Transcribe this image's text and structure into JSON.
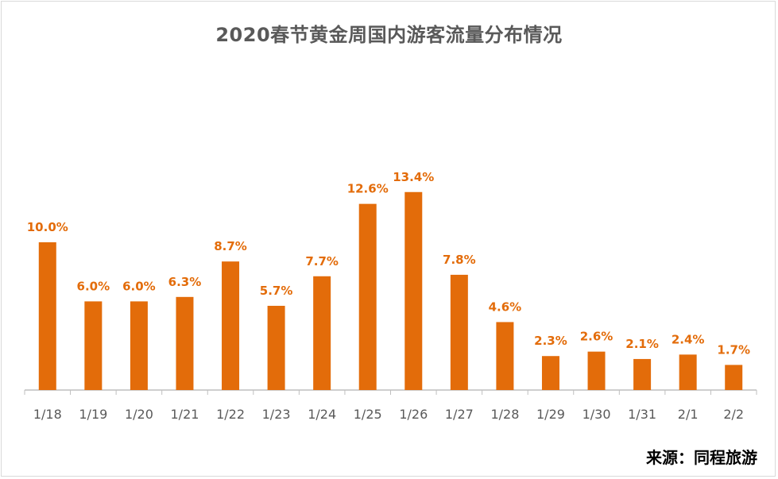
{
  "chart_data": {
    "type": "bar",
    "title": "2020春节黄金周国内游客流量分布情况",
    "categories": [
      "1/18",
      "1/19",
      "1/20",
      "1/21",
      "1/22",
      "1/23",
      "1/24",
      "1/25",
      "1/26",
      "1/27",
      "1/28",
      "1/29",
      "1/30",
      "1/31",
      "2/1",
      "2/2"
    ],
    "values": [
      10.0,
      6.0,
      6.0,
      6.3,
      8.7,
      5.7,
      7.7,
      12.6,
      13.4,
      7.8,
      4.6,
      2.3,
      2.6,
      2.1,
      2.4,
      1.7
    ],
    "data_labels": [
      "10.0%",
      "6.0%",
      "6.0%",
      "6.3%",
      "8.7%",
      "5.7%",
      "7.7%",
      "12.6%",
      "13.4%",
      "7.8%",
      "4.6%",
      "2.3%",
      "2.6%",
      "2.1%",
      "2.4%",
      "1.7%"
    ],
    "unit": "%",
    "xlabel": "",
    "ylabel": "",
    "ylim": [
      0,
      14
    ],
    "bar_color": "#e36c0a",
    "label_color": "#e36c0a",
    "axis_color": "#bfbfbf",
    "tick_label_color": "#595959",
    "grid": false,
    "legend": "none"
  },
  "source_note": "来源：同程旅游"
}
